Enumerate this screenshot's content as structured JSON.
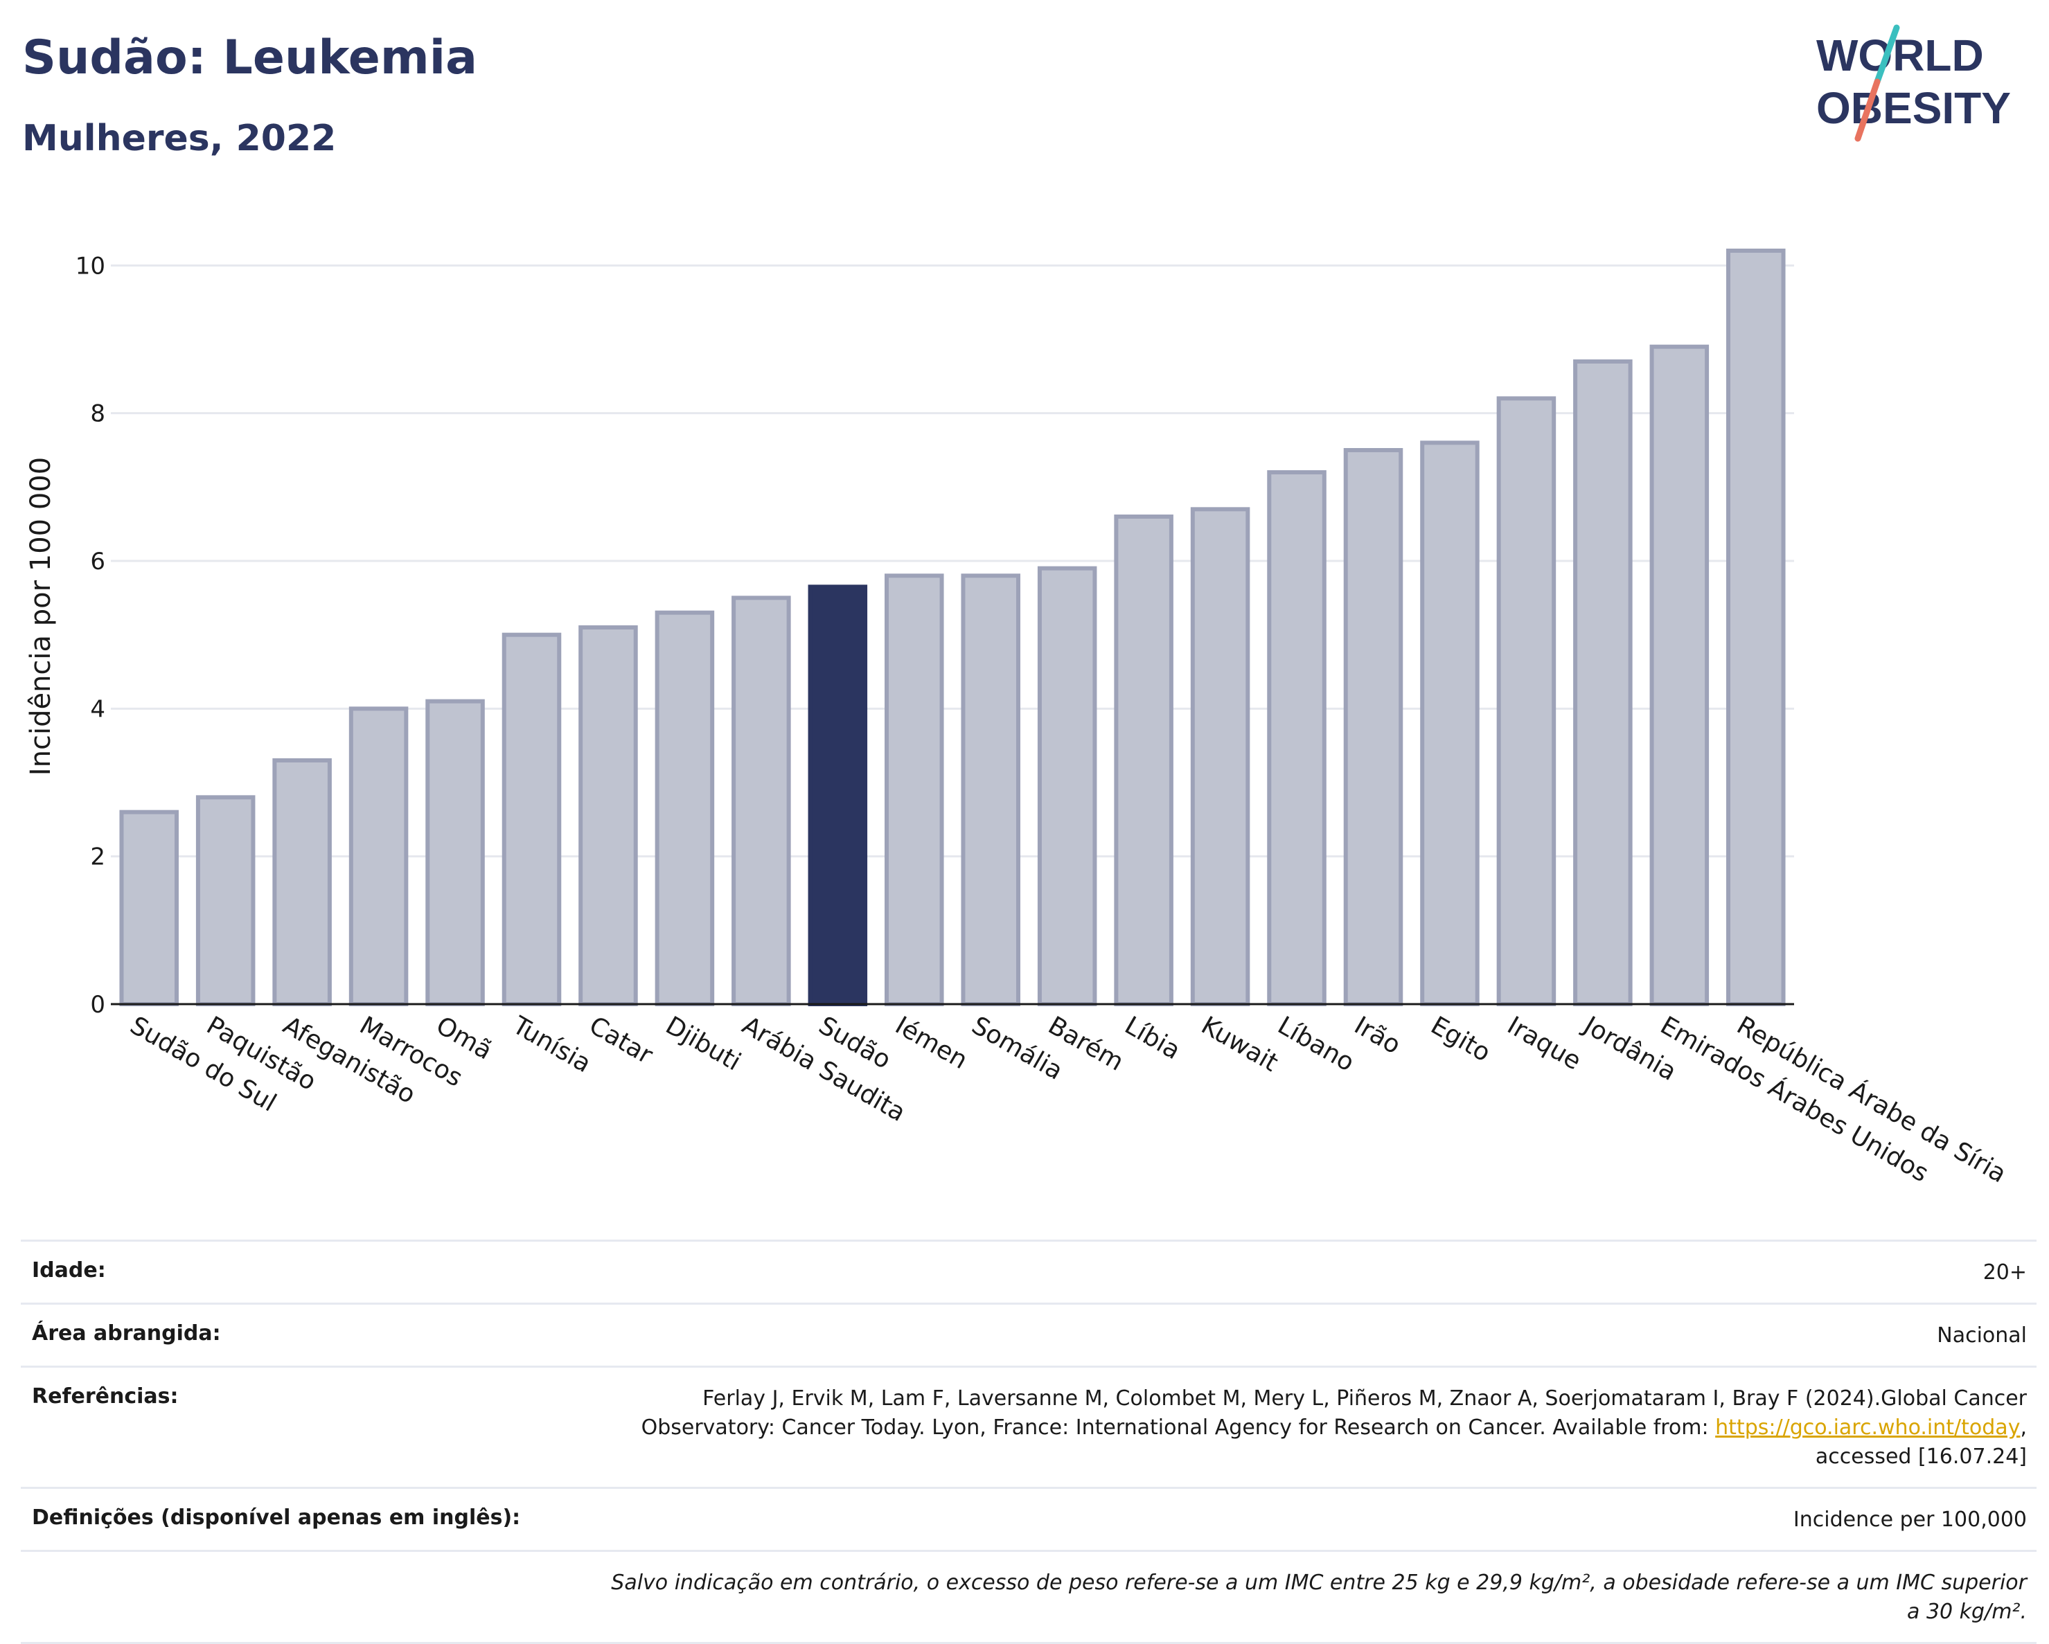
{
  "header": {
    "title": "Sudão: Leukemia",
    "subtitle": "Mulheres, 2022"
  },
  "logo": {
    "line1": "WORLD",
    "line2": "OBESITY"
  },
  "colors": {
    "highlight": "#2b3560",
    "bar_fill": "#bfc3d0",
    "bar_stroke": "#9da2b8",
    "grid": "#e6e8ee",
    "logo_text": "#2b3560",
    "logo_slash_top": "#3bbfbf",
    "logo_slash_bottom": "#e8735f"
  },
  "chart_data": {
    "type": "bar",
    "title": "Sudão: Leukemia",
    "subtitle": "Mulheres, 2022",
    "xlabel": "",
    "ylabel": "Incidência por 100 000",
    "ylim": [
      0,
      10.5
    ],
    "yticks": [
      0,
      2,
      4,
      6,
      8,
      10
    ],
    "grid": true,
    "highlight_category": "Sudão",
    "categories": [
      "Sudão do Sul",
      "Paquistão",
      "Afeganistão",
      "Marrocos",
      "Omã",
      "Tunísia",
      "Catar",
      "Djibuti",
      "Arábia Saudita",
      "Sudão",
      "Iémen",
      "Somália",
      "Barém",
      "Líbia",
      "Kuwait",
      "Líbano",
      "Irão",
      "Egito",
      "Iraque",
      "Jordânia",
      "Emirados Árabes Unidos",
      "República Árabe da Síria"
    ],
    "values": [
      2.6,
      2.8,
      3.3,
      4.0,
      4.1,
      5.0,
      5.1,
      5.3,
      5.5,
      5.65,
      5.8,
      5.8,
      5.9,
      6.6,
      6.7,
      7.2,
      7.5,
      7.6,
      8.2,
      8.7,
      8.9,
      10.2
    ]
  },
  "info": {
    "age_label": "Idade:",
    "age_value": "20+",
    "area_label": "Área abrangida:",
    "area_value": "Nacional",
    "ref_label": "Referências:",
    "ref_text": "Ferlay J, Ervik M, Lam F, Laversanne M, Colombet M, Mery L, Piñeros M, Znaor A, Soerjomataram I, Bray F (2024).Global Cancer Observatory: Cancer Today. Lyon, France: International Agency for Research on Cancer. Available from: ",
    "ref_link": "https://gco.iarc.who.int/today",
    "ref_suffix": ", accessed [16.07.24]",
    "def_label": "Definições (disponível apenas em inglês):",
    "def_value": "Incidence per 100,000",
    "note": "Salvo indicação em contrário, o excesso de peso refere-se a um IMC entre 25 kg e 29,9 kg/m², a obesidade refere-se a um IMC superior a 30 kg/m²."
  }
}
